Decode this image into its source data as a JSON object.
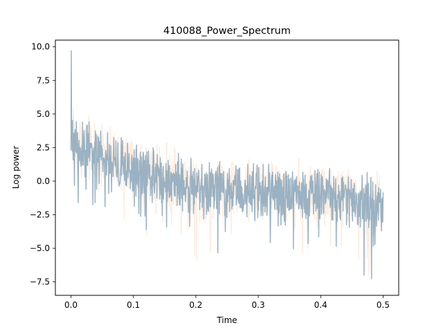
{
  "chart_data": {
    "type": "line",
    "title": "410088_Power_Spectrum",
    "xlabel": "Time",
    "ylabel": "Log power",
    "xlim": [
      -0.025,
      0.525
    ],
    "ylim": [
      -8.5,
      10.5
    ],
    "xticks": [
      0.0,
      0.1,
      0.2,
      0.3,
      0.4,
      0.5
    ],
    "xtick_labels": [
      "0.0",
      "0.1",
      "0.2",
      "0.3",
      "0.4",
      "0.5"
    ],
    "yticks": [
      -7.5,
      -5.0,
      -2.5,
      0.0,
      2.5,
      5.0,
      7.5,
      10.0
    ],
    "ytick_labels": [
      "−7.5",
      "−5.0",
      "−2.5",
      "0.0",
      "2.5",
      "5.0",
      "7.5",
      "10.0"
    ],
    "grid": false,
    "series": [
      {
        "color": "#fbd9bd",
        "opacity": 0.5,
        "x_range": [
          0.0,
          0.5
        ],
        "points": 1000,
        "peak": 7.8,
        "envelope": [
          [
            0.0,
            3.8
          ],
          [
            0.01,
            2.9
          ],
          [
            0.05,
            1.9
          ],
          [
            0.1,
            1.0
          ],
          [
            0.15,
            0.4
          ],
          [
            0.2,
            -0.4
          ],
          [
            0.3,
            -0.7
          ],
          [
            0.4,
            -0.8
          ],
          [
            0.45,
            -1.3
          ],
          [
            0.5,
            -1.8
          ]
        ],
        "spread": 2.6,
        "min": -7.0
      },
      {
        "color": "#9ab2c3",
        "opacity": 1,
        "x_range": [
          0.0,
          0.5
        ],
        "points": 1000,
        "peak": 9.7,
        "envelope": [
          [
            0.0,
            3.3
          ],
          [
            0.01,
            2.6
          ],
          [
            0.05,
            1.6
          ],
          [
            0.1,
            0.8
          ],
          [
            0.15,
            0.2
          ],
          [
            0.2,
            -0.5
          ],
          [
            0.3,
            -0.8
          ],
          [
            0.4,
            -0.9
          ],
          [
            0.45,
            -1.3
          ],
          [
            0.5,
            -1.8
          ]
        ],
        "spread": 2.4,
        "min": -7.6
      }
    ]
  }
}
